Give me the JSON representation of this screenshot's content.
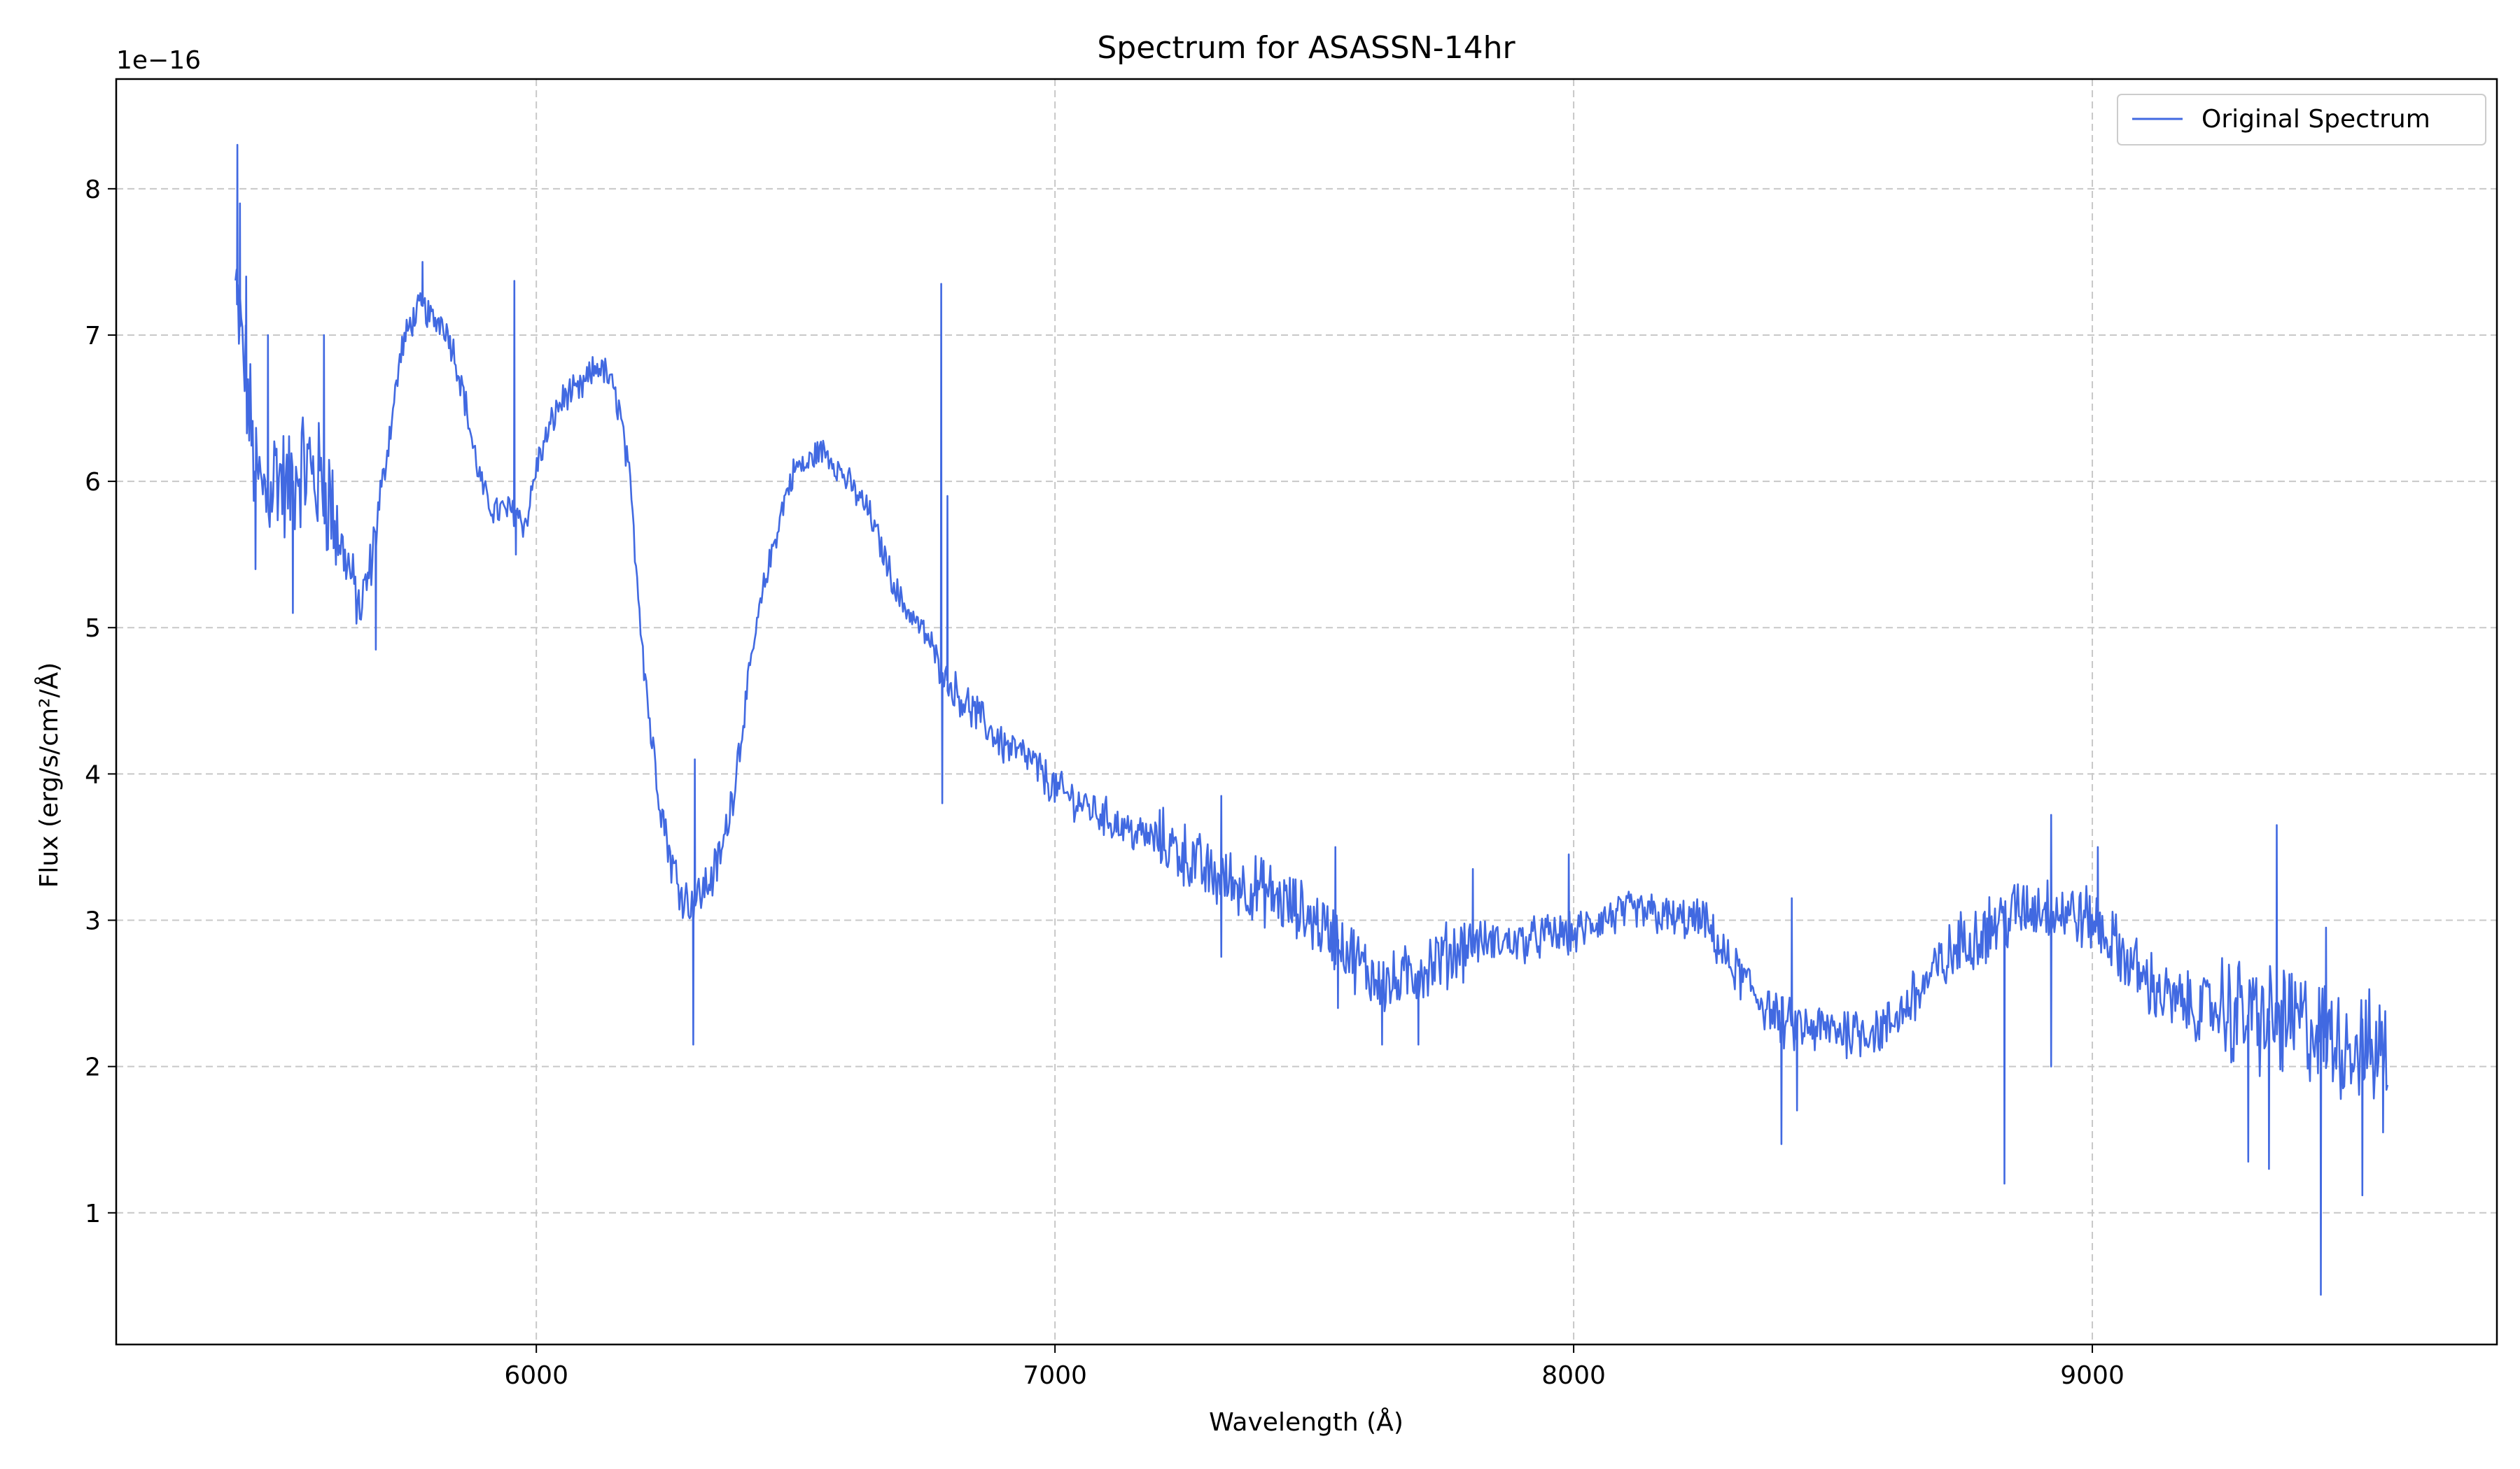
{
  "chart_data": {
    "type": "line",
    "title": "Spectrum for ASASSN-14hr",
    "xlabel": "Wavelength (Å)",
    "ylabel": "Flux (erg/s/cm²/Å)",
    "y_offset_label": "1e−16",
    "y_scale_factor": 1e-16,
    "xlim": [
      5190,
      9780
    ],
    "ylim": [
      0.1,
      8.75
    ],
    "x_ticks": [
      6000,
      7000,
      8000,
      9000
    ],
    "y_ticks": [
      1,
      2,
      3,
      4,
      5,
      6,
      7,
      8
    ],
    "grid": true,
    "legend_position": "upper right",
    "color": "#4169e1",
    "series": [
      {
        "name": "Original Spectrum",
        "x": [
          5420,
          5440,
          5460,
          5480,
          5500,
          5520,
          5540,
          5560,
          5580,
          5600,
          5620,
          5640,
          5660,
          5680,
          5700,
          5720,
          5740,
          5760,
          5780,
          5800,
          5820,
          5840,
          5860,
          5880,
          5900,
          5920,
          5940,
          5960,
          5980,
          6000,
          6020,
          6040,
          6060,
          6080,
          6100,
          6120,
          6140,
          6160,
          6180,
          6200,
          6220,
          6240,
          6260,
          6280,
          6300,
          6320,
          6340,
          6360,
          6380,
          6400,
          6420,
          6440,
          6460,
          6480,
          6500,
          6520,
          6540,
          6560,
          6580,
          6600,
          6620,
          6640,
          6660,
          6680,
          6700,
          6720,
          6740,
          6760,
          6780,
          6800,
          6850,
          6900,
          6950,
          7000,
          7050,
          7100,
          7150,
          7200,
          7250,
          7300,
          7350,
          7400,
          7450,
          7500,
          7550,
          7600,
          7650,
          7700,
          7750,
          7800,
          7850,
          7900,
          7950,
          8000,
          8050,
          8100,
          8150,
          8200,
          8250,
          8300,
          8350,
          8400,
          8450,
          8500,
          8550,
          8600,
          8650,
          8700,
          8750,
          8800,
          8850,
          8900,
          8950,
          9000,
          9050,
          9100,
          9150,
          9200,
          9250,
          9300,
          9350,
          9400,
          9450,
          9500,
          9550,
          9570
        ],
        "y": [
          7.3,
          6.7,
          6.0,
          5.9,
          6.1,
          5.9,
          6.1,
          6.1,
          6.0,
          5.9,
          5.6,
          5.4,
          5.1,
          5.4,
          5.9,
          6.4,
          6.9,
          7.1,
          7.2,
          7.1,
          7.1,
          6.9,
          6.6,
          6.2,
          5.9,
          5.8,
          5.8,
          5.8,
          5.7,
          6.1,
          6.3,
          6.5,
          6.6,
          6.6,
          6.7,
          6.8,
          6.7,
          6.5,
          6.0,
          5.1,
          4.3,
          3.8,
          3.4,
          3.2,
          3.1,
          3.2,
          3.3,
          3.5,
          3.9,
          4.4,
          4.9,
          5.3,
          5.6,
          5.9,
          6.1,
          6.1,
          6.2,
          6.2,
          6.1,
          6.0,
          5.9,
          5.8,
          5.6,
          5.4,
          5.2,
          5.1,
          5.0,
          4.9,
          4.7,
          4.6,
          4.4,
          4.2,
          4.1,
          3.9,
          3.8,
          3.7,
          3.6,
          3.55,
          3.45,
          3.3,
          3.25,
          3.2,
          3.1,
          3.0,
          2.85,
          2.65,
          2.55,
          2.65,
          2.75,
          2.85,
          2.85,
          2.85,
          2.9,
          2.9,
          3.0,
          3.05,
          3.05,
          3.0,
          3.0,
          2.7,
          2.5,
          2.3,
          2.25,
          2.25,
          2.25,
          2.25,
          2.45,
          2.65,
          2.85,
          2.95,
          3.05,
          3.1,
          3.05,
          3.0,
          2.8,
          2.6,
          2.45,
          2.4,
          2.4,
          2.35,
          2.3,
          2.3,
          2.2,
          2.15,
          2.1,
          2.1
        ]
      }
    ],
    "spikes": [
      {
        "x": 5423,
        "y": 8.3
      },
      {
        "x": 5428,
        "y": 7.9
      },
      {
        "x": 5440,
        "y": 7.4
      },
      {
        "x": 5458,
        "y": 5.4
      },
      {
        "x": 5482,
        "y": 7.0
      },
      {
        "x": 5530,
        "y": 5.1
      },
      {
        "x": 5590,
        "y": 7.0
      },
      {
        "x": 5690,
        "y": 4.85
      },
      {
        "x": 5780,
        "y": 7.5
      },
      {
        "x": 5957,
        "y": 7.37
      },
      {
        "x": 5960,
        "y": 5.5
      },
      {
        "x": 6302,
        "y": 2.15
      },
      {
        "x": 6305,
        "y": 4.1
      },
      {
        "x": 6780,
        "y": 7.35
      },
      {
        "x": 6782,
        "y": 3.8
      },
      {
        "x": 6792,
        "y": 5.9
      },
      {
        "x": 7320,
        "y": 3.85
      },
      {
        "x": 7320,
        "y": 2.75
      },
      {
        "x": 7540,
        "y": 3.5
      },
      {
        "x": 7545,
        "y": 2.4
      },
      {
        "x": 7630,
        "y": 2.15
      },
      {
        "x": 7700,
        "y": 2.15
      },
      {
        "x": 7805,
        "y": 3.35
      },
      {
        "x": 7990,
        "y": 3.45
      },
      {
        "x": 8400,
        "y": 1.47
      },
      {
        "x": 8420,
        "y": 3.15
      },
      {
        "x": 8430,
        "y": 1.7
      },
      {
        "x": 8830,
        "y": 1.2
      },
      {
        "x": 8920,
        "y": 3.72
      },
      {
        "x": 8920,
        "y": 2.0
      },
      {
        "x": 9010,
        "y": 3.5
      },
      {
        "x": 9300,
        "y": 1.35
      },
      {
        "x": 9340,
        "y": 1.3
      },
      {
        "x": 9355,
        "y": 3.65
      },
      {
        "x": 9440,
        "y": 0.44
      },
      {
        "x": 9450,
        "y": 2.95
      },
      {
        "x": 9520,
        "y": 1.12
      },
      {
        "x": 9560,
        "y": 1.55
      }
    ]
  }
}
